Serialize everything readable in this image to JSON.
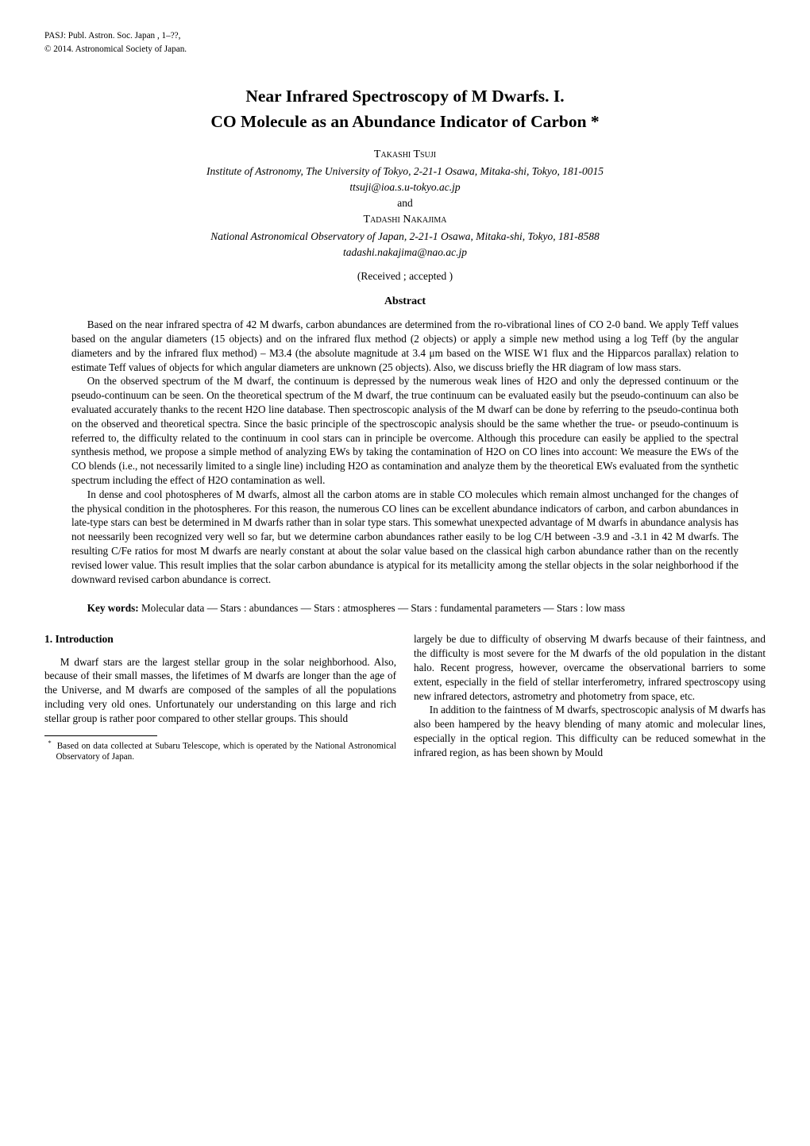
{
  "header": {
    "line1": "PASJ: Publ. Astron. Soc. Japan , 1–??,",
    "line2": "© 2014. Astronomical Society of Japan."
  },
  "title_line1": "Near Infrared Spectroscopy of M Dwarfs. I.",
  "title_line2": "CO Molecule as an Abundance Indicator of Carbon *",
  "authors": {
    "author1_name": "Takashi Tsuji",
    "author1_affil": "Institute of Astronomy, The University of Tokyo, 2-21-1 Osawa, Mitaka-shi, Tokyo, 181-0015",
    "author1_email": "ttsuji@ioa.s.u-tokyo.ac.jp",
    "and": "and",
    "author2_name": "Tadashi Nakajima",
    "author2_affil": "National Astronomical Observatory of Japan, 2-21-1 Osawa, Mitaka-shi, Tokyo, 181-8588",
    "author2_email": "tadashi.nakajima@nao.ac.jp"
  },
  "received": "(Received ; accepted )",
  "abstract_heading": "Abstract",
  "abstract": {
    "p1": "Based on the near infrared spectra of 42 M dwarfs, carbon abundances are determined from the ro-vibrational lines of CO 2-0 band. We apply Teff values based on the angular diameters (15 objects) and on the infrared flux method (2 objects) or apply a simple new method using a log Teff (by the angular diameters and by the infrared flux method) – M3.4 (the absolute magnitude at 3.4 μm based on the WISE W1 flux and the Hipparcos parallax) relation to estimate Teff values of objects for which angular diameters are unknown (25 objects). Also, we discuss briefly the HR diagram of low mass stars.",
    "p2": "On the observed spectrum of the M dwarf, the continuum is depressed by the numerous weak lines of H2O and only the depressed continuum or the pseudo-continuum can be seen. On the theoretical spectrum of the M dwarf, the true continuum can be evaluated easily but the pseudo-continuum can also be evaluated accurately thanks to the recent H2O line database. Then spectroscopic analysis of the M dwarf can be done by referring to the pseudo-continua both on the observed and theoretical spectra. Since the basic principle of the spectroscopic analysis should be the same whether the true- or pseudo-continuum is referred to, the difficulty related to the continuum in cool stars can in principle be overcome. Although this procedure can easily be applied to the spectral synthesis method, we propose a simple method of analyzing EWs by taking the contamination of H2O on CO lines into account: We measure the EWs of the CO blends (i.e., not necessarily limited to a single line) including H2O as contamination and analyze them by the theoretical EWs evaluated from the synthetic spectrum including the effect of H2O contamination as well.",
    "p3": "In dense and cool photospheres of M dwarfs, almost all the carbon atoms are in stable CO molecules which remain almost unchanged for the changes of the physical condition in the photospheres. For this reason, the numerous CO lines can be excellent abundance indicators of carbon, and carbon abundances in late-type stars can best be determined in M dwarfs rather than in solar type stars. This somewhat unexpected advantage of M dwarfs in abundance analysis has not neessarily been recognized very well so far, but we determine carbon abundances rather easily to be log C/H between -3.9 and -3.1 in 42 M dwarfs. The resulting C/Fe ratios for most M dwarfs are nearly constant at about the solar value based on the classical high carbon abundance rather than on the recently revised lower value. This result implies that the solar carbon abundance is atypical for its metallicity among the stellar objects in the solar neighborhood if the downward revised carbon abundance is correct."
  },
  "keywords_label": "Key words:",
  "keywords_text": " Molecular data — Stars : abundances — Stars : atmospheres — Stars : fundamental parameters — Stars : low mass",
  "section1_heading": "1.   Introduction",
  "body": {
    "p1": "M dwarf stars are the largest stellar group in the solar neighborhood. Also, because of their small masses, the lifetimes of M dwarfs are longer than the age of the Universe, and M dwarfs are composed of the samples of all the populations including very old ones. Unfortunately our understanding on this large and rich stellar group is rather poor compared to other stellar groups. This should",
    "p2": "largely be due to difficulty of observing M dwarfs because of their faintness, and the difficulty is most severe for the M dwarfs of the old population in the distant halo. Recent progress, however, overcame the observational barriers to some extent, especially in the field of stellar interferometry, infrared spectroscopy using new infrared detectors, astrometry and photometry from space, etc.",
    "p3": "In addition to the faintness of M dwarfs, spectroscopic analysis of M dwarfs has also been hampered by the heavy blending of many atomic and molecular lines, especially in the optical region. This difficulty can be reduced somewhat in the infrared region, as has been shown by Mould"
  },
  "footnote_marker": "*",
  "footnote_text": "Based on data collected at Subaru Telescope, which is operated by the National Astronomical Observatory of Japan."
}
